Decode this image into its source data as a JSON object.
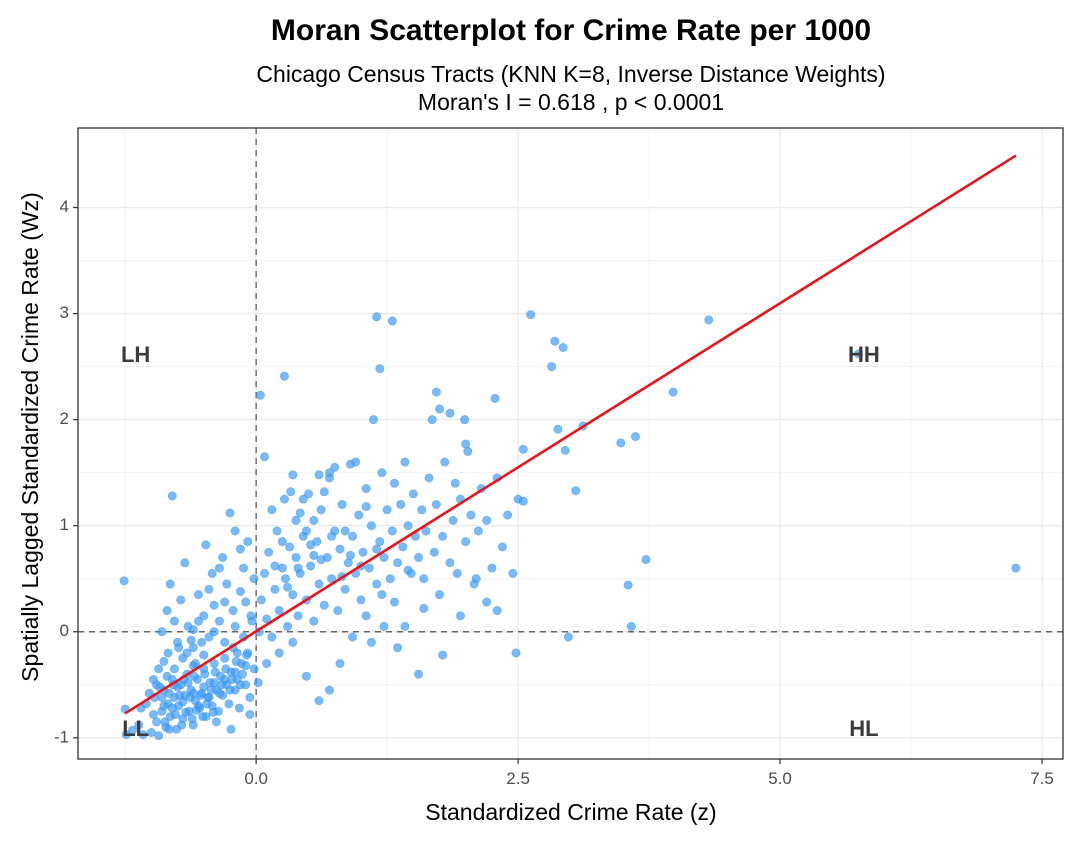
{
  "chart_data": {
    "type": "scatter",
    "title": "Moran Scatterplot for Crime Rate per 1000",
    "subtitle_line1": "Chicago Census Tracts (KNN K=8, Inverse Distance Weights)",
    "subtitle_line2": "Moran's I = 0.618 , p < 0.0001",
    "xlabel": "Standardized Crime Rate (z)",
    "ylabel": "Spatially Lagged Standardized Crime Rate (Wz)",
    "xlim": [
      -1.7,
      7.7
    ],
    "ylim": [
      -1.2,
      4.75
    ],
    "x_ticks": [
      0.0,
      2.5,
      5.0,
      7.5
    ],
    "x_tick_labels": [
      "0.0",
      "2.5",
      "5.0",
      "7.5"
    ],
    "y_ticks": [
      -1,
      0,
      1,
      2,
      3,
      4
    ],
    "y_tick_labels": [
      "-1",
      "0",
      "1",
      "2",
      "3",
      "4"
    ],
    "grid": true,
    "reference_lines": {
      "x": 0,
      "y": 0,
      "style": "dashed"
    },
    "quadrant_labels": [
      {
        "text": "LH",
        "x": -1.15,
        "y": 2.6
      },
      {
        "text": "HH",
        "x": 5.8,
        "y": 2.6
      },
      {
        "text": "LL",
        "x": -1.15,
        "y": -0.93
      },
      {
        "text": "HL",
        "x": 5.8,
        "y": -0.93
      }
    ],
    "regression_line": {
      "x": [
        -1.25,
        7.25
      ],
      "y": [
        -0.77,
        4.49
      ],
      "color": "#e8141a"
    },
    "point_color": "#3a9bf7",
    "points": [
      [
        -1.26,
        0.48
      ],
      [
        -1.24,
        -0.97
      ],
      [
        -1.25,
        -0.73
      ],
      [
        -1.18,
        -0.93
      ],
      [
        -1.12,
        -0.88
      ],
      [
        -1.1,
        -0.72
      ],
      [
        -1.08,
        -0.97
      ],
      [
        -1.05,
        -0.68
      ],
      [
        -1.0,
        -0.95
      ],
      [
        -0.97,
        -0.62
      ],
      [
        -0.95,
        -0.85
      ],
      [
        -0.93,
        -0.98
      ],
      [
        -0.9,
        -0.75
      ],
      [
        -0.88,
        -0.55
      ],
      [
        -0.86,
        -0.9
      ],
      [
        -0.84,
        -0.68
      ],
      [
        -0.82,
        -0.8
      ],
      [
        -0.8,
        -0.45
      ],
      [
        -0.78,
        -0.62
      ],
      [
        -0.76,
        -0.92
      ],
      [
        -0.74,
        -0.7
      ],
      [
        -0.72,
        -0.5
      ],
      [
        -0.7,
        -0.82
      ],
      [
        -0.68,
        -0.6
      ],
      [
        -0.66,
        -0.4
      ],
      [
        -0.64,
        -0.75
      ],
      [
        -0.62,
        -0.55
      ],
      [
        -0.6,
        -0.88
      ],
      [
        -0.58,
        -0.65
      ],
      [
        -0.56,
        -0.45
      ],
      [
        -0.54,
        -0.72
      ],
      [
        -0.52,
        -0.58
      ],
      [
        -0.5,
        -0.35
      ],
      [
        -0.48,
        -0.8
      ],
      [
        -0.46,
        -0.62
      ],
      [
        -0.44,
        -0.48
      ],
      [
        -0.42,
        -0.7
      ],
      [
        -0.4,
        -0.3
      ],
      [
        -0.38,
        -0.55
      ],
      [
        -0.36,
        -0.75
      ],
      [
        -0.34,
        -0.42
      ],
      [
        -0.32,
        -0.6
      ],
      [
        -0.3,
        -0.25
      ],
      [
        -0.28,
        -0.5
      ],
      [
        -0.26,
        -0.68
      ],
      [
        -0.24,
        -0.38
      ],
      [
        -0.22,
        -0.15
      ],
      [
        -0.2,
        -0.55
      ],
      [
        -0.18,
        -0.45
      ],
      [
        -0.16,
        -0.72
      ],
      [
        -0.14,
        -0.3
      ],
      [
        -0.12,
        -0.05
      ],
      [
        -0.1,
        -0.5
      ],
      [
        -0.08,
        -0.2
      ],
      [
        -0.06,
        -0.62
      ],
      [
        -0.04,
        0.1
      ],
      [
        -0.02,
        -0.35
      ],
      [
        -0.95,
        -0.5
      ],
      [
        -0.9,
        -0.62
      ],
      [
        -0.85,
        -0.42
      ],
      [
        -0.8,
        -0.72
      ],
      [
        -0.75,
        -0.52
      ],
      [
        -0.7,
        -0.66
      ],
      [
        -0.65,
        -0.48
      ],
      [
        -0.6,
        -0.58
      ],
      [
        -0.55,
        -0.7
      ],
      [
        -0.5,
        -0.52
      ],
      [
        -0.45,
        -0.62
      ],
      [
        -0.4,
        -0.48
      ],
      [
        -0.35,
        -0.58
      ],
      [
        -0.3,
        -0.45
      ],
      [
        -0.25,
        -0.55
      ],
      [
        -0.2,
        -0.38
      ],
      [
        -0.15,
        -0.5
      ],
      [
        -0.1,
        -0.32
      ],
      [
        -1.02,
        -0.58
      ],
      [
        -0.98,
        -0.78
      ],
      [
        -0.92,
        -0.52
      ],
      [
        -0.88,
        -0.7
      ],
      [
        -0.83,
        -0.58
      ],
      [
        -0.79,
        -0.5
      ],
      [
        -0.73,
        -0.6
      ],
      [
        -0.69,
        -0.45
      ],
      [
        -0.63,
        -0.62
      ],
      [
        -0.59,
        -0.42
      ],
      [
        -0.53,
        -0.6
      ],
      [
        -0.49,
        -0.4
      ],
      [
        -0.43,
        -0.55
      ],
      [
        -0.39,
        -0.38
      ],
      [
        -0.33,
        -0.5
      ],
      [
        -0.29,
        -0.35
      ],
      [
        -0.23,
        -0.45
      ],
      [
        -0.19,
        -0.28
      ],
      [
        -0.13,
        -0.4
      ],
      [
        -0.09,
        -0.22
      ],
      [
        -0.87,
        -0.85
      ],
      [
        -0.83,
        -0.92
      ],
      [
        -0.77,
        -0.78
      ],
      [
        -0.71,
        -0.88
      ],
      [
        -0.67,
        -0.76
      ],
      [
        -0.61,
        -0.82
      ],
      [
        -0.57,
        -0.74
      ],
      [
        -0.51,
        -0.8
      ],
      [
        -0.47,
        -0.68
      ],
      [
        -0.41,
        -0.76
      ],
      [
        -0.9,
        0.0
      ],
      [
        -0.85,
        0.2
      ],
      [
        -0.82,
        0.45
      ],
      [
        -0.78,
        0.1
      ],
      [
        -0.75,
        -0.1
      ],
      [
        -0.72,
        0.3
      ],
      [
        -0.68,
        0.65
      ],
      [
        -0.65,
        0.05
      ],
      [
        -0.6,
        -0.15
      ],
      [
        -0.55,
        0.35
      ],
      [
        -0.5,
        0.15
      ],
      [
        -0.48,
        0.82
      ],
      [
        -0.45,
        -0.05
      ],
      [
        -0.42,
        0.55
      ],
      [
        -0.4,
        0.25
      ],
      [
        -0.35,
        0.1
      ],
      [
        -0.32,
        0.7
      ],
      [
        -0.3,
        -0.1
      ],
      [
        -0.28,
        0.45
      ],
      [
        -0.25,
        1.12
      ],
      [
        -0.22,
        0.2
      ],
      [
        -0.2,
        0.95
      ],
      [
        -0.18,
        -0.2
      ],
      [
        -0.15,
        0.38
      ],
      [
        -0.12,
        0.6
      ],
      [
        -0.1,
        0.28
      ],
      [
        -0.08,
        0.85
      ],
      [
        -0.05,
        0.15
      ],
      [
        -0.02,
        0.5
      ],
      [
        -0.8,
        1.28
      ],
      [
        -0.6,
        0.02
      ],
      [
        -0.38,
        -0.85
      ],
      [
        -0.24,
        -0.92
      ],
      [
        -0.06,
        -0.78
      ],
      [
        0.02,
        -0.48
      ],
      [
        0.03,
        0.0
      ],
      [
        0.04,
        2.23
      ],
      [
        0.08,
        1.65
      ],
      [
        0.1,
        -0.3
      ],
      [
        0.05,
        0.3
      ],
      [
        0.08,
        0.55
      ],
      [
        0.1,
        0.12
      ],
      [
        0.12,
        0.75
      ],
      [
        0.15,
        -0.05
      ],
      [
        0.18,
        0.4
      ],
      [
        0.2,
        0.95
      ],
      [
        0.22,
        0.2
      ],
      [
        0.25,
        0.6
      ],
      [
        0.27,
        1.25
      ],
      [
        0.3,
        0.05
      ],
      [
        0.32,
        0.8
      ],
      [
        0.35,
        0.35
      ],
      [
        0.38,
        1.05
      ],
      [
        0.4,
        0.15
      ],
      [
        0.42,
        0.55
      ],
      [
        0.45,
        0.9
      ],
      [
        0.48,
        0.3
      ],
      [
        0.5,
        1.3
      ],
      [
        0.52,
        0.62
      ],
      [
        0.55,
        0.1
      ],
      [
        0.58,
        0.85
      ],
      [
        0.6,
        0.45
      ],
      [
        0.62,
        1.15
      ],
      [
        0.65,
        0.25
      ],
      [
        0.68,
        0.7
      ],
      [
        0.7,
        1.45
      ],
      [
        0.72,
        0.5
      ],
      [
        0.75,
        0.95
      ],
      [
        0.78,
        0.2
      ],
      [
        0.8,
        0.78
      ],
      [
        0.82,
        1.2
      ],
      [
        0.85,
        0.4
      ],
      [
        0.88,
        0.65
      ],
      [
        0.9,
        1.58
      ],
      [
        0.92,
        0.9
      ],
      [
        0.95,
        0.55
      ],
      [
        0.98,
        1.1
      ],
      [
        1.0,
        0.3
      ],
      [
        1.02,
        0.75
      ],
      [
        1.05,
        1.35
      ],
      [
        1.08,
        0.6
      ],
      [
        1.1,
        1.0
      ],
      [
        1.12,
        2.0
      ],
      [
        1.15,
        0.45
      ],
      [
        1.18,
        0.85
      ],
      [
        1.2,
        1.5
      ],
      [
        1.22,
        0.7
      ],
      [
        1.25,
        1.15
      ],
      [
        1.28,
        0.5
      ],
      [
        1.3,
        0.95
      ],
      [
        1.32,
        1.4
      ],
      [
        1.35,
        0.65
      ],
      [
        1.38,
        1.2
      ],
      [
        1.4,
        0.8
      ],
      [
        1.42,
        1.6
      ],
      [
        1.45,
        1.0
      ],
      [
        1.48,
        0.55
      ],
      [
        1.5,
        1.3
      ],
      [
        1.52,
        0.9
      ],
      [
        1.55,
        0.7
      ],
      [
        1.58,
        1.15
      ],
      [
        1.6,
        0.5
      ],
      [
        1.62,
        0.95
      ],
      [
        1.65,
        1.45
      ],
      [
        1.68,
        2.0
      ],
      [
        1.7,
        0.75
      ],
      [
        1.72,
        1.2
      ],
      [
        1.75,
        2.1
      ],
      [
        1.78,
        0.9
      ],
      [
        1.8,
        1.6
      ],
      [
        1.85,
        0.65
      ],
      [
        1.88,
        1.05
      ],
      [
        1.9,
        1.4
      ],
      [
        1.92,
        0.55
      ],
      [
        1.95,
        1.25
      ],
      [
        2.0,
        0.85
      ],
      [
        2.02,
        1.7
      ],
      [
        2.05,
        1.1
      ],
      [
        2.1,
        0.5
      ],
      [
        2.12,
        0.95
      ],
      [
        2.15,
        1.35
      ],
      [
        2.2,
        1.05
      ],
      [
        2.25,
        0.6
      ],
      [
        2.3,
        1.45
      ],
      [
        2.35,
        0.8
      ],
      [
        2.4,
        1.1
      ],
      [
        2.45,
        0.55
      ],
      [
        2.5,
        1.25
      ],
      [
        2.55,
        1.72
      ],
      [
        0.15,
        1.15
      ],
      [
        0.25,
        0.85
      ],
      [
        0.35,
        1.48
      ],
      [
        0.45,
        1.25
      ],
      [
        0.55,
        1.05
      ],
      [
        0.65,
        1.32
      ],
      [
        0.75,
        1.55
      ],
      [
        0.85,
        0.95
      ],
      [
        0.95,
        1.6
      ],
      [
        1.05,
        1.18
      ],
      [
        0.22,
        -0.2
      ],
      [
        0.35,
        -0.1
      ],
      [
        0.48,
        -0.42
      ],
      [
        0.6,
        -0.65
      ],
      [
        0.7,
        -0.55
      ],
      [
        0.8,
        -0.3
      ],
      [
        0.92,
        -0.05
      ],
      [
        1.1,
        -0.1
      ],
      [
        1.22,
        0.05
      ],
      [
        1.35,
        -0.15
      ],
      [
        0.18,
        0.62
      ],
      [
        0.28,
        0.5
      ],
      [
        0.38,
        0.7
      ],
      [
        0.52,
        0.82
      ],
      [
        0.62,
        0.68
      ],
      [
        0.72,
        0.9
      ],
      [
        0.82,
        0.52
      ],
      [
        0.9,
        0.72
      ],
      [
        1.0,
        0.62
      ],
      [
        1.15,
        0.78
      ],
      [
        1.15,
        2.97
      ],
      [
        1.3,
        2.93
      ],
      [
        1.18,
        2.48
      ],
      [
        0.27,
        2.41
      ],
      [
        1.72,
        2.26
      ],
      [
        1.85,
        2.06
      ],
      [
        1.99,
        2.0
      ],
      [
        2.0,
        1.77
      ],
      [
        2.28,
        2.2
      ],
      [
        2.55,
        1.23
      ],
      [
        2.62,
        2.99
      ],
      [
        2.85,
        2.74
      ],
      [
        2.93,
        2.68
      ],
      [
        2.82,
        2.5
      ],
      [
        2.88,
        1.91
      ],
      [
        2.95,
        1.71
      ],
      [
        3.05,
        1.33
      ],
      [
        3.12,
        1.94
      ],
      [
        2.98,
        -0.05
      ],
      [
        2.48,
        -0.2
      ],
      [
        3.48,
        1.78
      ],
      [
        3.62,
        1.84
      ],
      [
        3.72,
        0.68
      ],
      [
        3.55,
        0.44
      ],
      [
        3.58,
        0.05
      ],
      [
        3.98,
        2.26
      ],
      [
        4.32,
        2.94
      ],
      [
        2.3,
        0.2
      ],
      [
        2.2,
        0.28
      ],
      [
        1.78,
        -0.22
      ],
      [
        1.55,
        -0.4
      ],
      [
        1.95,
        0.15
      ],
      [
        2.08,
        0.45
      ],
      [
        1.75,
        0.35
      ],
      [
        1.6,
        0.22
      ],
      [
        1.42,
        0.05
      ],
      [
        1.32,
        0.28
      ],
      [
        1.45,
        0.58
      ],
      [
        1.2,
        0.35
      ],
      [
        1.05,
        0.15
      ],
      [
        7.25,
        0.6
      ],
      [
        5.75,
        2.62
      ],
      [
        0.6,
        1.48
      ],
      [
        0.7,
        1.5
      ],
      [
        0.48,
        0.95
      ],
      [
        0.55,
        0.72
      ],
      [
        0.33,
        1.32
      ],
      [
        0.42,
        1.12
      ],
      [
        0.4,
        0.6
      ],
      [
        0.3,
        0.42
      ],
      [
        -0.3,
        0.28
      ],
      [
        -0.4,
        0.0
      ],
      [
        -0.5,
        -0.22
      ],
      [
        -0.6,
        -0.32
      ],
      [
        -0.7,
        -0.25
      ],
      [
        -0.55,
        0.1
      ],
      [
        -0.45,
        0.4
      ],
      [
        -0.35,
        0.6
      ],
      [
        -0.2,
        0.05
      ],
      [
        -0.15,
        0.78
      ],
      [
        -0.98,
        -0.45
      ],
      [
        -0.93,
        -0.35
      ],
      [
        -0.88,
        -0.28
      ],
      [
        -0.84,
        -0.2
      ],
      [
        -0.78,
        -0.35
      ],
      [
        -0.74,
        -0.15
      ],
      [
        -0.66,
        -0.2
      ],
      [
        -0.62,
        -0.08
      ],
      [
        -0.58,
        -0.3
      ],
      [
        -0.52,
        -0.1
      ]
    ]
  }
}
